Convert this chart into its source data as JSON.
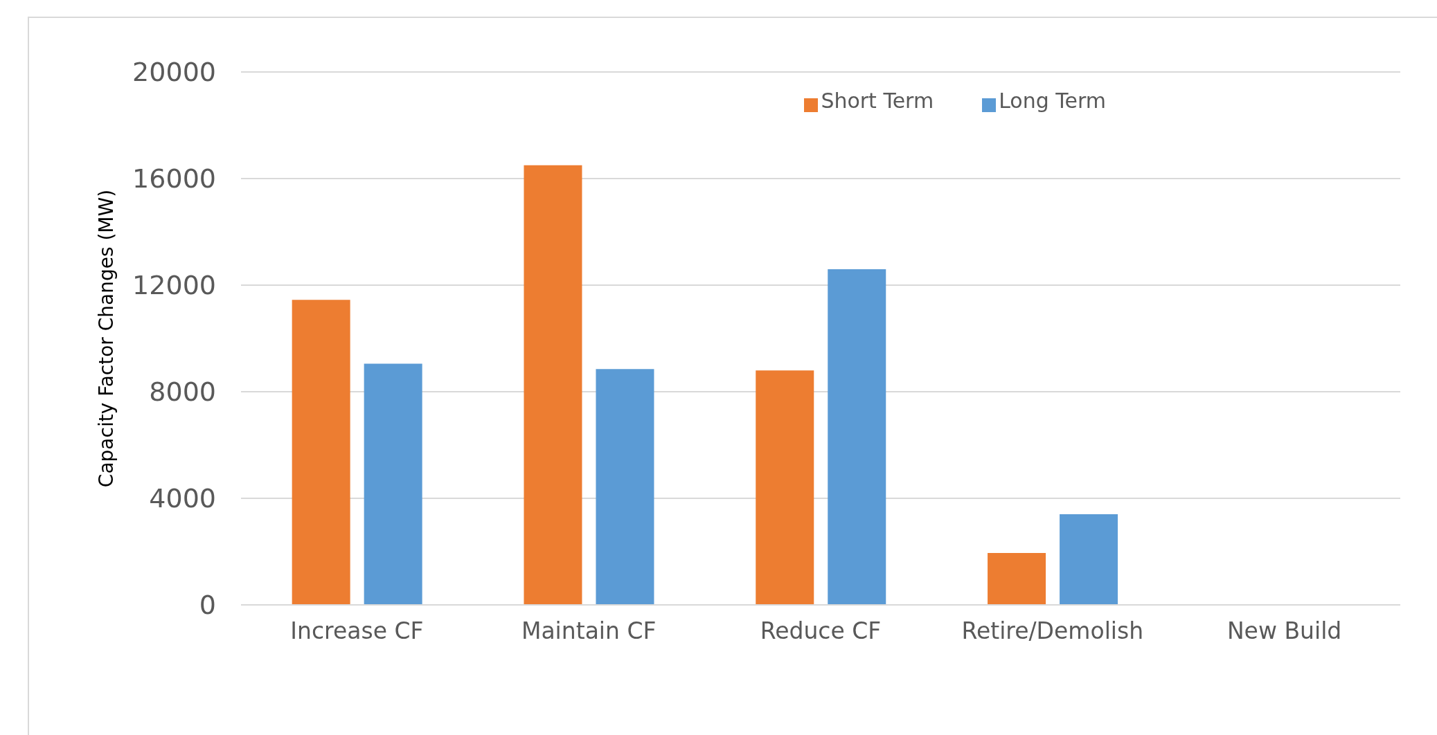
{
  "chart_data": {
    "type": "bar",
    "ylabel": "Capacity Factor Changes (MW)",
    "categories": [
      "Increase CF",
      "Maintain CF",
      "Reduce CF",
      "Retire/Demolish",
      "New Build"
    ],
    "series": [
      {
        "name": "Short Term",
        "color": "#ed7d31",
        "values": [
          11450,
          16500,
          8800,
          1950,
          0
        ]
      },
      {
        "name": "Long Term",
        "color": "#5b9bd5",
        "values": [
          9050,
          8850,
          12600,
          3400,
          0
        ]
      }
    ],
    "ylim": [
      0,
      20000
    ],
    "yticks": [
      0,
      4000,
      8000,
      12000,
      16000,
      20000
    ],
    "grid": "y",
    "legend": "top right"
  }
}
